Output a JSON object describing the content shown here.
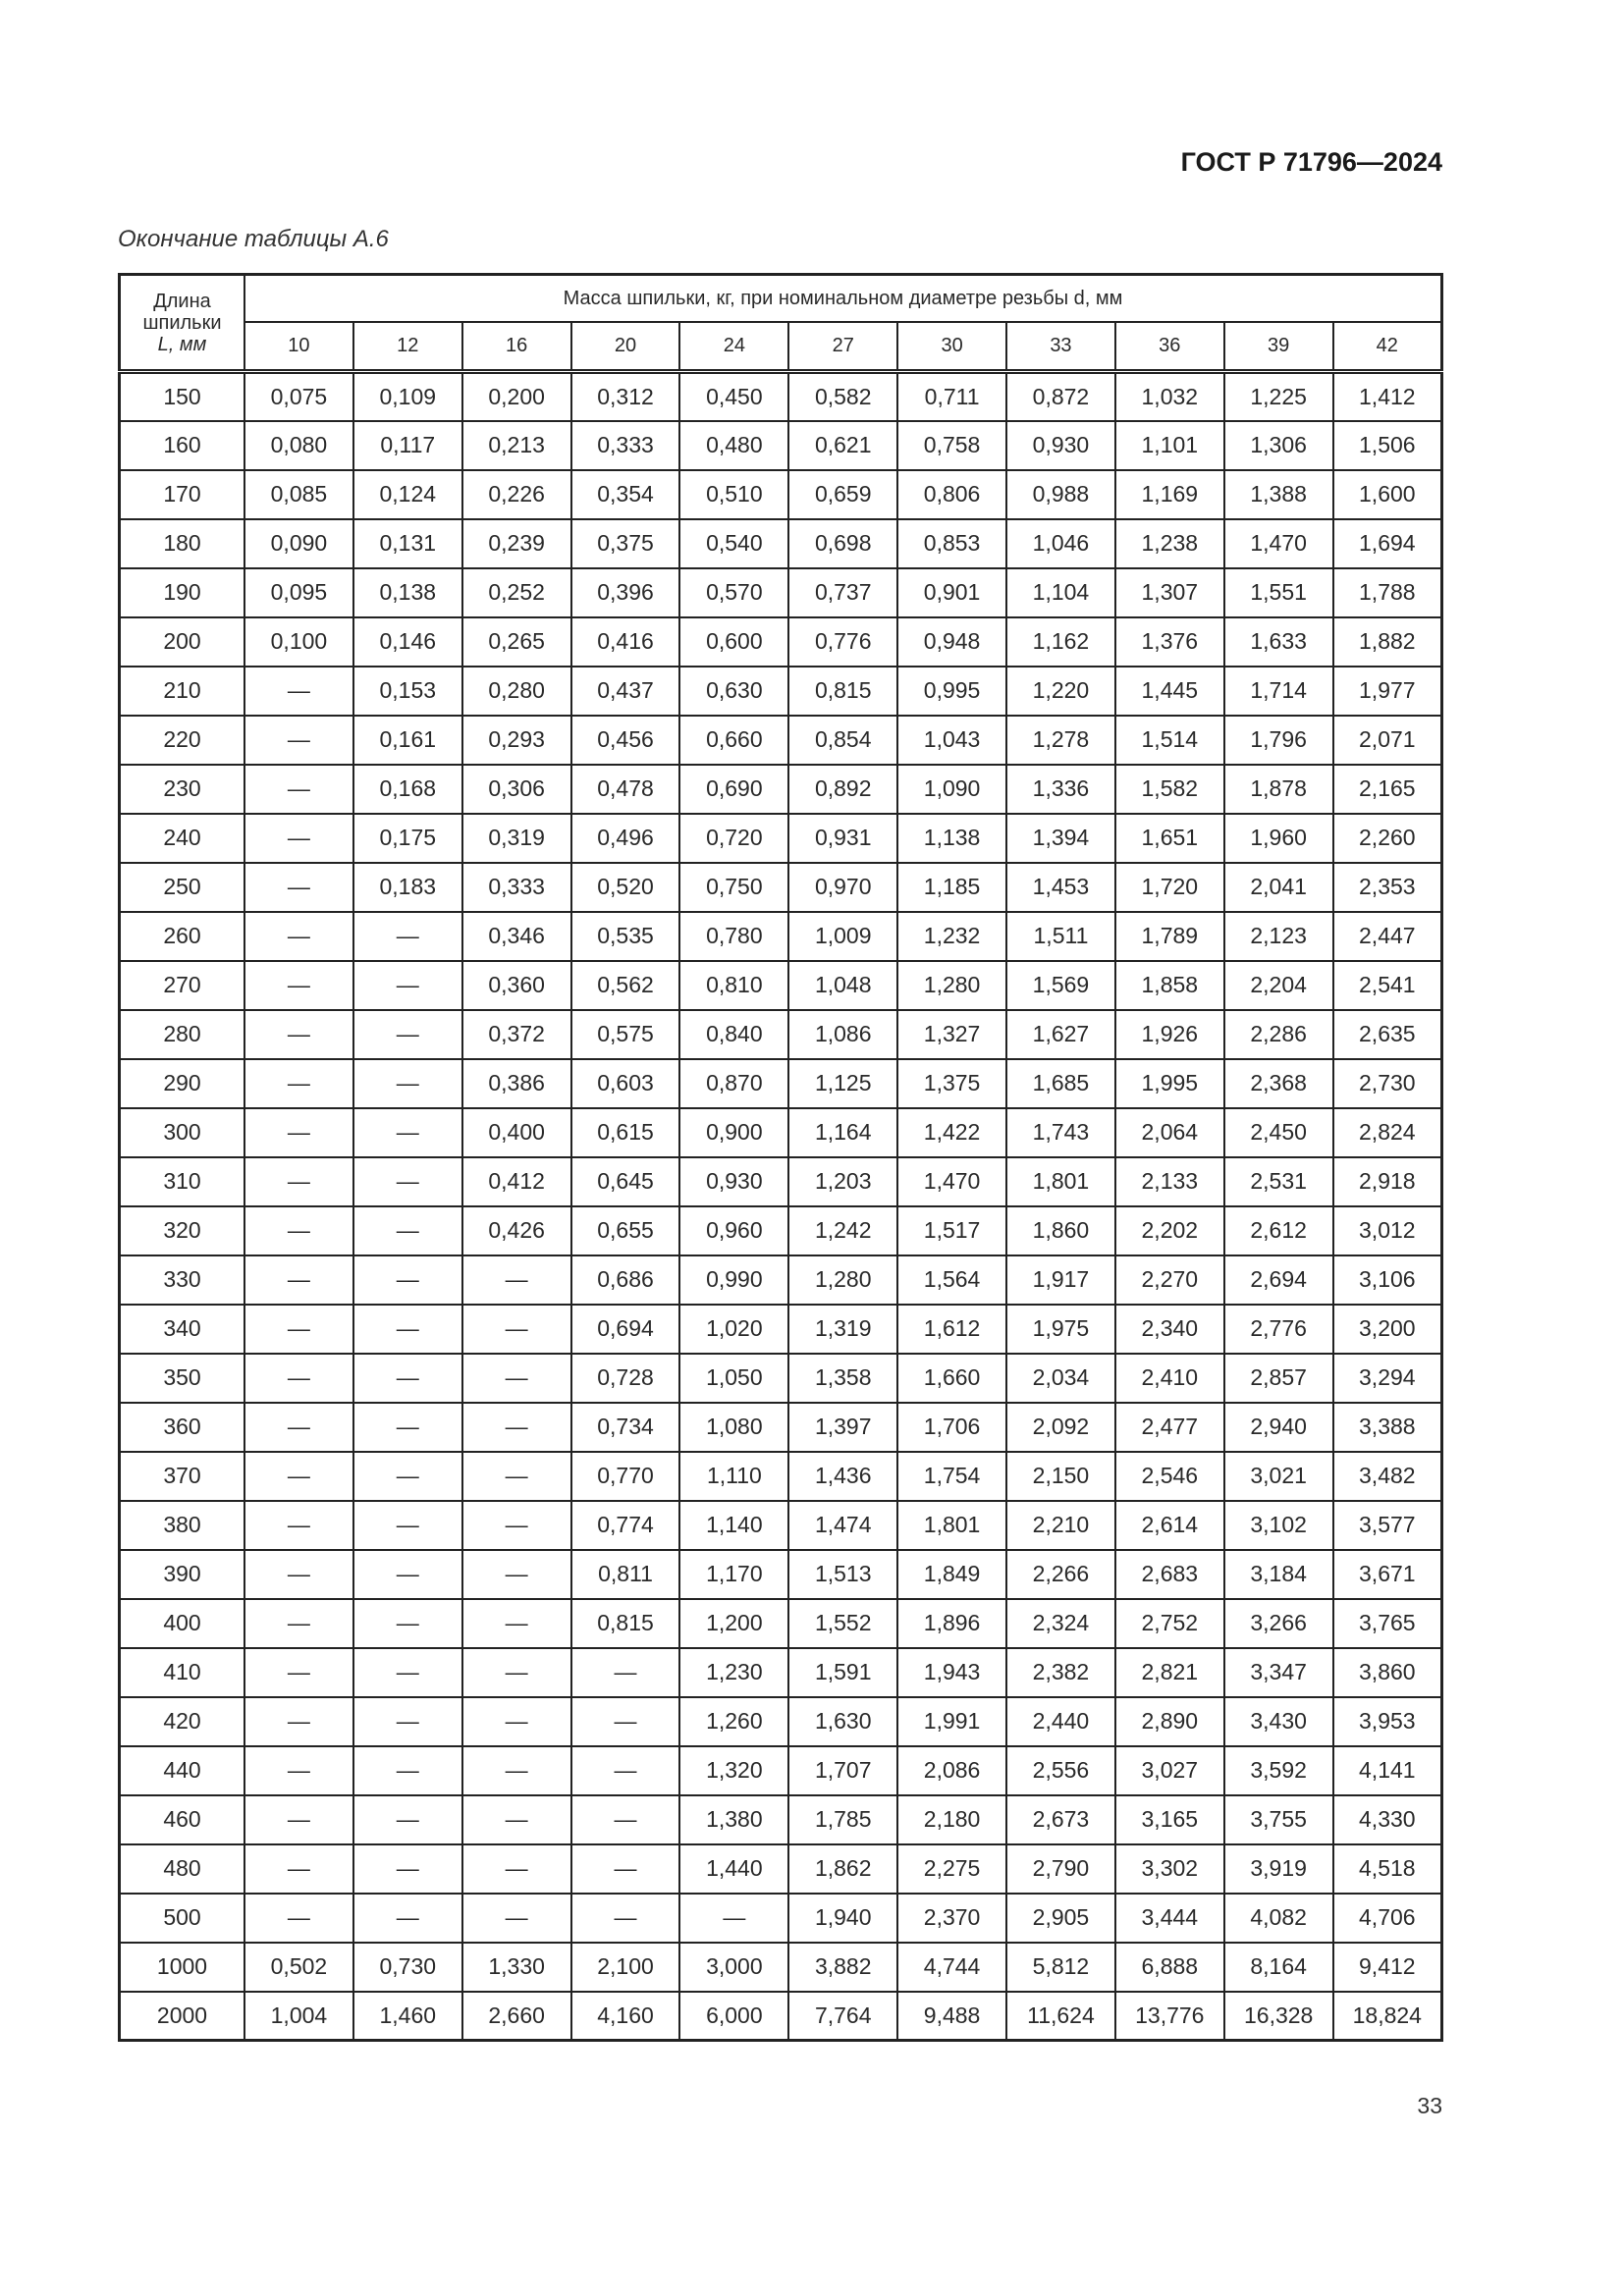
{
  "header": {
    "doc_code": "ГОСТ Р 71796—2024"
  },
  "caption": "Окончание таблицы А.6",
  "table": {
    "first_col_header": [
      "Длина",
      "шпильки",
      "L, мм"
    ],
    "group_header": "Масса шпильки, кг, при номинальном диаметре резьбы d, мм",
    "diameters": [
      "10",
      "12",
      "16",
      "20",
      "24",
      "27",
      "30",
      "33",
      "36",
      "39",
      "42"
    ],
    "rows": [
      [
        "150",
        "0,075",
        "0,109",
        "0,200",
        "0,312",
        "0,450",
        "0,582",
        "0,711",
        "0,872",
        "1,032",
        "1,225",
        "1,412"
      ],
      [
        "160",
        "0,080",
        "0,117",
        "0,213",
        "0,333",
        "0,480",
        "0,621",
        "0,758",
        "0,930",
        "1,101",
        "1,306",
        "1,506"
      ],
      [
        "170",
        "0,085",
        "0,124",
        "0,226",
        "0,354",
        "0,510",
        "0,659",
        "0,806",
        "0,988",
        "1,169",
        "1,388",
        "1,600"
      ],
      [
        "180",
        "0,090",
        "0,131",
        "0,239",
        "0,375",
        "0,540",
        "0,698",
        "0,853",
        "1,046",
        "1,238",
        "1,470",
        "1,694"
      ],
      [
        "190",
        "0,095",
        "0,138",
        "0,252",
        "0,396",
        "0,570",
        "0,737",
        "0,901",
        "1,104",
        "1,307",
        "1,551",
        "1,788"
      ],
      [
        "200",
        "0,100",
        "0,146",
        "0,265",
        "0,416",
        "0,600",
        "0,776",
        "0,948",
        "1,162",
        "1,376",
        "1,633",
        "1,882"
      ],
      [
        "210",
        "—",
        "0,153",
        "0,280",
        "0,437",
        "0,630",
        "0,815",
        "0,995",
        "1,220",
        "1,445",
        "1,714",
        "1,977"
      ],
      [
        "220",
        "—",
        "0,161",
        "0,293",
        "0,456",
        "0,660",
        "0,854",
        "1,043",
        "1,278",
        "1,514",
        "1,796",
        "2,071"
      ],
      [
        "230",
        "—",
        "0,168",
        "0,306",
        "0,478",
        "0,690",
        "0,892",
        "1,090",
        "1,336",
        "1,582",
        "1,878",
        "2,165"
      ],
      [
        "240",
        "—",
        "0,175",
        "0,319",
        "0,496",
        "0,720",
        "0,931",
        "1,138",
        "1,394",
        "1,651",
        "1,960",
        "2,260"
      ],
      [
        "250",
        "—",
        "0,183",
        "0,333",
        "0,520",
        "0,750",
        "0,970",
        "1,185",
        "1,453",
        "1,720",
        "2,041",
        "2,353"
      ],
      [
        "260",
        "—",
        "—",
        "0,346",
        "0,535",
        "0,780",
        "1,009",
        "1,232",
        "1,511",
        "1,789",
        "2,123",
        "2,447"
      ],
      [
        "270",
        "—",
        "—",
        "0,360",
        "0,562",
        "0,810",
        "1,048",
        "1,280",
        "1,569",
        "1,858",
        "2,204",
        "2,541"
      ],
      [
        "280",
        "—",
        "—",
        "0,372",
        "0,575",
        "0,840",
        "1,086",
        "1,327",
        "1,627",
        "1,926",
        "2,286",
        "2,635"
      ],
      [
        "290",
        "—",
        "—",
        "0,386",
        "0,603",
        "0,870",
        "1,125",
        "1,375",
        "1,685",
        "1,995",
        "2,368",
        "2,730"
      ],
      [
        "300",
        "—",
        "—",
        "0,400",
        "0,615",
        "0,900",
        "1,164",
        "1,422",
        "1,743",
        "2,064",
        "2,450",
        "2,824"
      ],
      [
        "310",
        "—",
        "—",
        "0,412",
        "0,645",
        "0,930",
        "1,203",
        "1,470",
        "1,801",
        "2,133",
        "2,531",
        "2,918"
      ],
      [
        "320",
        "—",
        "—",
        "0,426",
        "0,655",
        "0,960",
        "1,242",
        "1,517",
        "1,860",
        "2,202",
        "2,612",
        "3,012"
      ],
      [
        "330",
        "—",
        "—",
        "—",
        "0,686",
        "0,990",
        "1,280",
        "1,564",
        "1,917",
        "2,270",
        "2,694",
        "3,106"
      ],
      [
        "340",
        "—",
        "—",
        "—",
        "0,694",
        "1,020",
        "1,319",
        "1,612",
        "1,975",
        "2,340",
        "2,776",
        "3,200"
      ],
      [
        "350",
        "—",
        "—",
        "—",
        "0,728",
        "1,050",
        "1,358",
        "1,660",
        "2,034",
        "2,410",
        "2,857",
        "3,294"
      ],
      [
        "360",
        "—",
        "—",
        "—",
        "0,734",
        "1,080",
        "1,397",
        "1,706",
        "2,092",
        "2,477",
        "2,940",
        "3,388"
      ],
      [
        "370",
        "—",
        "—",
        "—",
        "0,770",
        "1,110",
        "1,436",
        "1,754",
        "2,150",
        "2,546",
        "3,021",
        "3,482"
      ],
      [
        "380",
        "—",
        "—",
        "—",
        "0,774",
        "1,140",
        "1,474",
        "1,801",
        "2,210",
        "2,614",
        "3,102",
        "3,577"
      ],
      [
        "390",
        "—",
        "—",
        "—",
        "0,811",
        "1,170",
        "1,513",
        "1,849",
        "2,266",
        "2,683",
        "3,184",
        "3,671"
      ],
      [
        "400",
        "—",
        "—",
        "—",
        "0,815",
        "1,200",
        "1,552",
        "1,896",
        "2,324",
        "2,752",
        "3,266",
        "3,765"
      ],
      [
        "410",
        "—",
        "—",
        "—",
        "—",
        "1,230",
        "1,591",
        "1,943",
        "2,382",
        "2,821",
        "3,347",
        "3,860"
      ],
      [
        "420",
        "—",
        "—",
        "—",
        "—",
        "1,260",
        "1,630",
        "1,991",
        "2,440",
        "2,890",
        "3,430",
        "3,953"
      ],
      [
        "440",
        "—",
        "—",
        "—",
        "—",
        "1,320",
        "1,707",
        "2,086",
        "2,556",
        "3,027",
        "3,592",
        "4,141"
      ],
      [
        "460",
        "—",
        "—",
        "—",
        "—",
        "1,380",
        "1,785",
        "2,180",
        "2,673",
        "3,165",
        "3,755",
        "4,330"
      ],
      [
        "480",
        "—",
        "—",
        "—",
        "—",
        "1,440",
        "1,862",
        "2,275",
        "2,790",
        "3,302",
        "3,919",
        "4,518"
      ],
      [
        "500",
        "—",
        "—",
        "—",
        "—",
        "—",
        "1,940",
        "2,370",
        "2,905",
        "3,444",
        "4,082",
        "4,706"
      ],
      [
        "1000",
        "0,502",
        "0,730",
        "1,330",
        "2,100",
        "3,000",
        "3,882",
        "4,744",
        "5,812",
        "6,888",
        "8,164",
        "9,412"
      ],
      [
        "2000",
        "1,004",
        "1,460",
        "2,660",
        "4,160",
        "6,000",
        "7,764",
        "9,488",
        "11,624",
        "13,776",
        "16,328",
        "18,824"
      ]
    ]
  },
  "page_number": "33"
}
